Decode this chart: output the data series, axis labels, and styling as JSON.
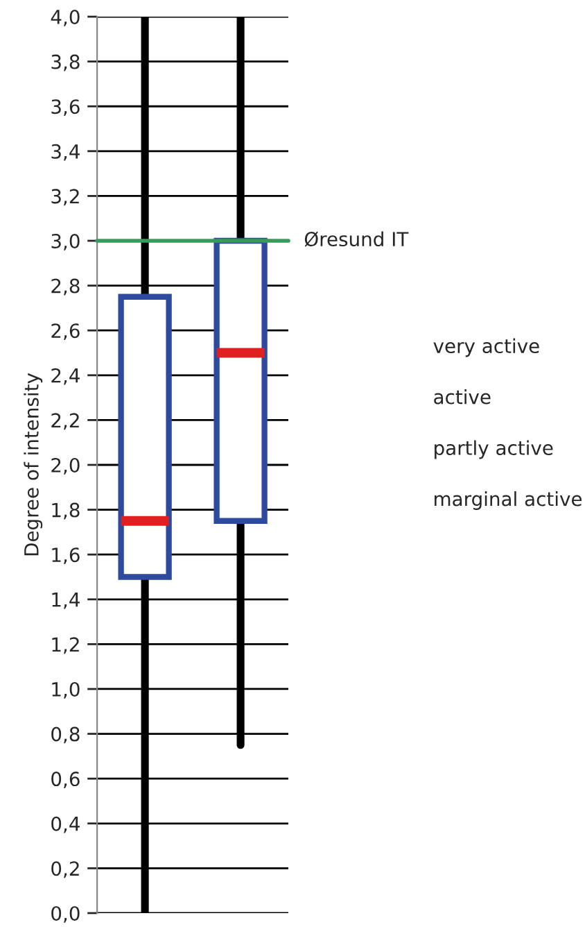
{
  "chart_data": {
    "type": "box",
    "ylabel": "Degree of intensity",
    "categories": [
      null,
      null
    ],
    "series": [
      {
        "color": "#2e4a9e",
        "boxes": [
          {
            "low": 0.0,
            "q1": 1.5,
            "median": 1.75,
            "q3": 2.75,
            "high": 4.0
          },
          {
            "low": 0.75,
            "q1": 1.75,
            "median": 2.5,
            "q3": 3.0,
            "high": 4.0
          }
        ]
      }
    ],
    "ylim": [
      0,
      4
    ],
    "yticks": [
      {
        "value": 0,
        "label": "0,0"
      },
      {
        "value": 0.2,
        "label": "0,2"
      },
      {
        "value": 0.4,
        "label": "0,4"
      },
      {
        "value": 0.6,
        "label": "0,6"
      },
      {
        "value": 0.8,
        "label": "0,8"
      },
      {
        "value": 1.0,
        "label": "1,0"
      },
      {
        "value": 1.2,
        "label": "1,2"
      },
      {
        "value": 1.4,
        "label": "1,4"
      },
      {
        "value": 1.6,
        "label": "1,6"
      },
      {
        "value": 1.8,
        "label": "1,8"
      },
      {
        "value": 2.0,
        "label": "2,0"
      },
      {
        "value": 2.2,
        "label": "2,2"
      },
      {
        "value": 2.4,
        "label": "2,4"
      },
      {
        "value": 2.6,
        "label": "2,6"
      },
      {
        "value": 2.8,
        "label": "2,8"
      },
      {
        "value": 3.0,
        "label": "3,0"
      },
      {
        "value": 3.2,
        "label": "3,2"
      },
      {
        "value": 3.4,
        "label": "3,4"
      },
      {
        "value": 3.6,
        "label": "3,6"
      },
      {
        "value": 3.8,
        "label": "3,8"
      },
      {
        "value": 4.0,
        "label": "4,0"
      }
    ],
    "grid": "y",
    "ref_lines": [
      {
        "axis": "y",
        "value": 3.0,
        "label": "Øresund IT",
        "color": "#3a9a5e"
      }
    ],
    "annotations": [
      "very active",
      "active",
      "partly active",
      "marginal active"
    ]
  }
}
